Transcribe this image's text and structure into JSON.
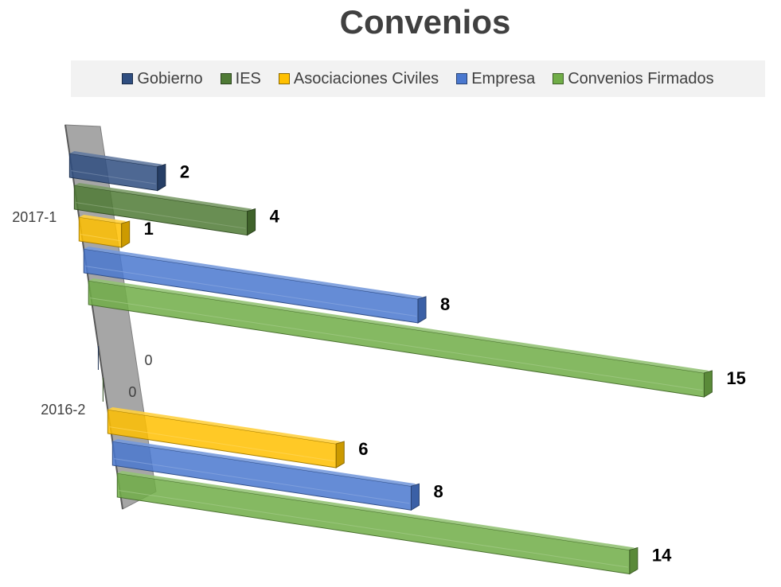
{
  "chart_data": {
    "type": "bar",
    "orientation": "horizontal",
    "projection": "3d-perspective",
    "title": "Convenios",
    "categories": [
      "2017-1",
      "2016-2"
    ],
    "series": [
      {
        "name": "Gobierno",
        "color": "#2f4e80",
        "values": [
          2,
          0
        ]
      },
      {
        "name": "IES",
        "color": "#4f7a35",
        "values": [
          4,
          0
        ]
      },
      {
        "name": "Asociaciones Civiles",
        "color": "#ffc000",
        "values": [
          1,
          6
        ]
      },
      {
        "name": "Empresa",
        "color": "#4a78cf",
        "values": [
          8,
          8
        ]
      },
      {
        "name": "Convenios Firmados",
        "color": "#70ad47",
        "values": [
          15,
          14
        ]
      }
    ],
    "xlim": [
      0,
      15
    ],
    "legend_position": "top",
    "grid": false
  }
}
